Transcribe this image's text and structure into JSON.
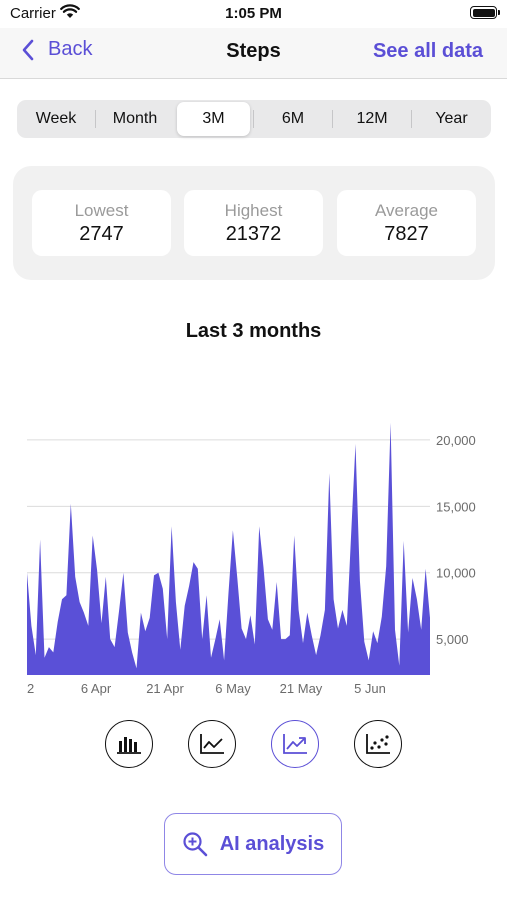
{
  "status_bar": {
    "carrier": "Carrier",
    "time": "1:05 PM"
  },
  "nav": {
    "back_label": "Back",
    "title": "Steps",
    "see_all_label": "See all data"
  },
  "ranges": {
    "options": [
      "Week",
      "Month",
      "3M",
      "6M",
      "12M",
      "Year"
    ],
    "selected": "3M"
  },
  "stats": [
    {
      "label": "Lowest",
      "value": "2747"
    },
    {
      "label": "Highest",
      "value": "21372"
    },
    {
      "label": "Average",
      "value": "7827"
    }
  ],
  "chart_title": "Last 3 months",
  "chart_types": [
    {
      "name": "bar-chart-icon",
      "selected": false
    },
    {
      "name": "line-chart-icon",
      "selected": false
    },
    {
      "name": "trend-chart-icon",
      "selected": true
    },
    {
      "name": "scatter-chart-icon",
      "selected": false
    }
  ],
  "ai_button": {
    "label": "AI analysis",
    "icon": "magnifier-plus-icon"
  },
  "colors": {
    "accent": "#5b4fd6",
    "fill": "#5a50d7"
  },
  "chart_data": {
    "type": "area",
    "title": "",
    "xlabel": "",
    "ylabel": "",
    "x_tick_labels": [
      "2",
      "6 Apr",
      "21 Apr",
      "6 May",
      "21 May",
      "5 Jun"
    ],
    "y_tick_labels": [
      "5,000",
      "10,000",
      "15,000",
      "20,000"
    ],
    "y_ticks": [
      5000,
      10000,
      15000,
      20000
    ],
    "ylim": [
      2300,
      21500
    ],
    "grid": true,
    "y_axis_position": "right",
    "series": [
      {
        "values": [
          10000,
          6000,
          3800,
          12500,
          3600,
          4400,
          4000,
          6300,
          8000,
          8300,
          15200,
          9700,
          7800,
          7000,
          6000,
          12800,
          10200,
          6200,
          9700,
          5000,
          4400,
          7100,
          10000,
          5500,
          4000,
          2800,
          7000,
          5600,
          6600,
          9800,
          10000,
          8800,
          5000,
          13500,
          7800,
          4200,
          7500,
          9000,
          10800,
          10300,
          5000,
          8300,
          3600,
          5000,
          6500,
          3400,
          8500,
          13200,
          9600,
          5800,
          5000,
          6800,
          4600,
          13500,
          10400,
          6500,
          5700,
          9300,
          5000,
          5000,
          5300,
          12800,
          7200,
          4700,
          7000,
          5300,
          3800,
          5300,
          7200,
          17500,
          8000,
          5800,
          7200,
          6000,
          13000,
          19700,
          9400,
          4800,
          3400,
          5600,
          4700,
          6700,
          10500,
          21300,
          5700,
          3000,
          12400,
          5500,
          9600,
          8000,
          5700,
          10300,
          6600
        ]
      }
    ]
  }
}
